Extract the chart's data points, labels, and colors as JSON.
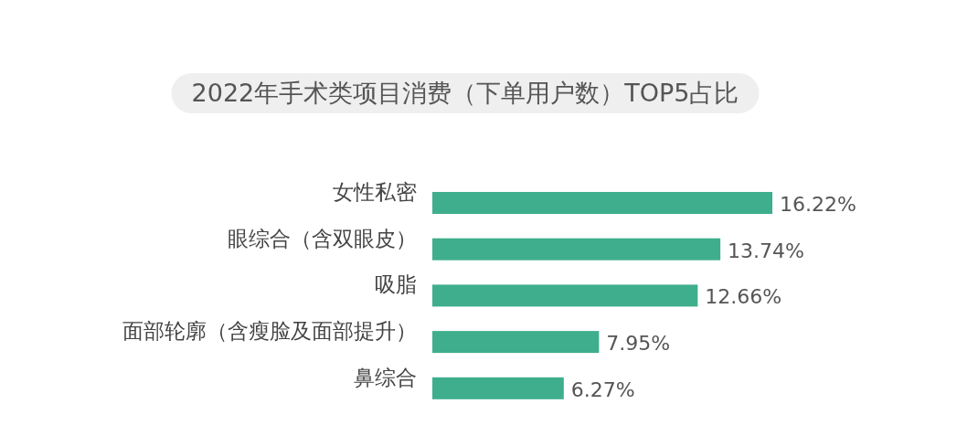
{
  "chart_data": {
    "type": "bar",
    "orientation": "horizontal",
    "title": "2022年手术类项目消费（下单用户数）TOP5占比",
    "categories": [
      "女性私密",
      "眼综合（含双眼皮）",
      "吸脂",
      "面部轮廓（含瘦脸及面部提升）",
      "鼻综合"
    ],
    "values": [
      16.22,
      13.74,
      12.66,
      7.95,
      6.27
    ],
    "value_labels": [
      "16.22%",
      "13.74%",
      "12.66%",
      "7.95%",
      "6.27%"
    ],
    "color": "#3fae8c"
  }
}
